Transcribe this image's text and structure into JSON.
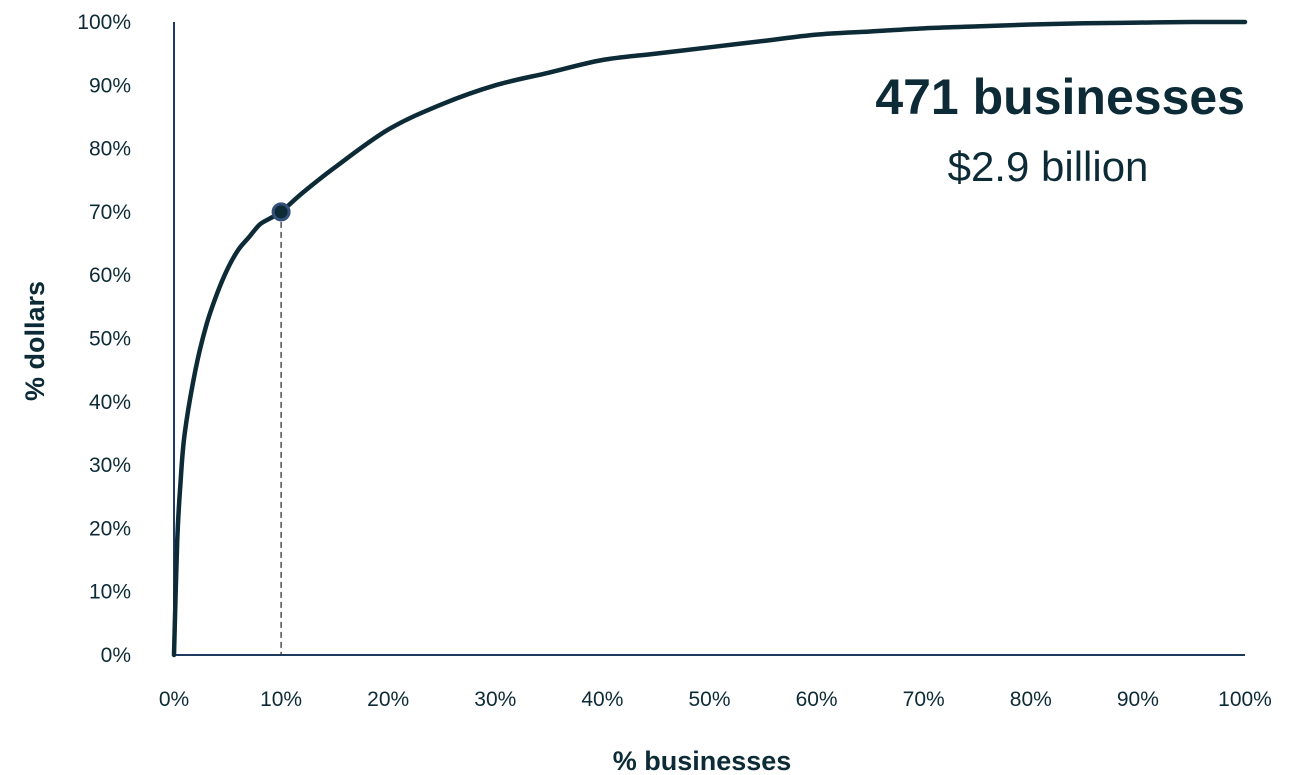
{
  "chart_data": {
    "type": "line",
    "xlabel": "% businesses",
    "ylabel": "% dollars",
    "xlim": [
      0,
      100
    ],
    "ylim": [
      0,
      100
    ],
    "x_tick_labels": [
      "0%",
      "10%",
      "20%",
      "30%",
      "40%",
      "50%",
      "60%",
      "70%",
      "80%",
      "90%",
      "100%"
    ],
    "y_tick_labels": [
      "0%",
      "10%",
      "20%",
      "30%",
      "40%",
      "50%",
      "60%",
      "70%",
      "80%",
      "90%",
      "100%"
    ],
    "series": [
      {
        "x": [
          0,
          0.3,
          0.6,
          1,
          2,
          3,
          4,
          5,
          6,
          7,
          8,
          9,
          10,
          12,
          15,
          20,
          25,
          30,
          35,
          40,
          45,
          50,
          55,
          60,
          65,
          70,
          75,
          80,
          85,
          90,
          95,
          100
        ],
        "y": [
          0,
          18,
          27,
          35,
          45,
          52,
          57,
          61,
          64,
          66,
          68,
          69,
          70,
          73,
          77,
          83,
          87,
          90,
          92,
          94,
          95,
          96,
          97,
          98,
          98.5,
          99,
          99.3,
          99.6,
          99.8,
          99.9,
          100,
          100
        ],
        "color": "#0d2b36"
      }
    ],
    "highlight_point": {
      "x": 10,
      "y": 70
    },
    "grid": false
  },
  "annotation": {
    "count_text": "471 businesses",
    "amount_text": "$2.9 billion"
  }
}
